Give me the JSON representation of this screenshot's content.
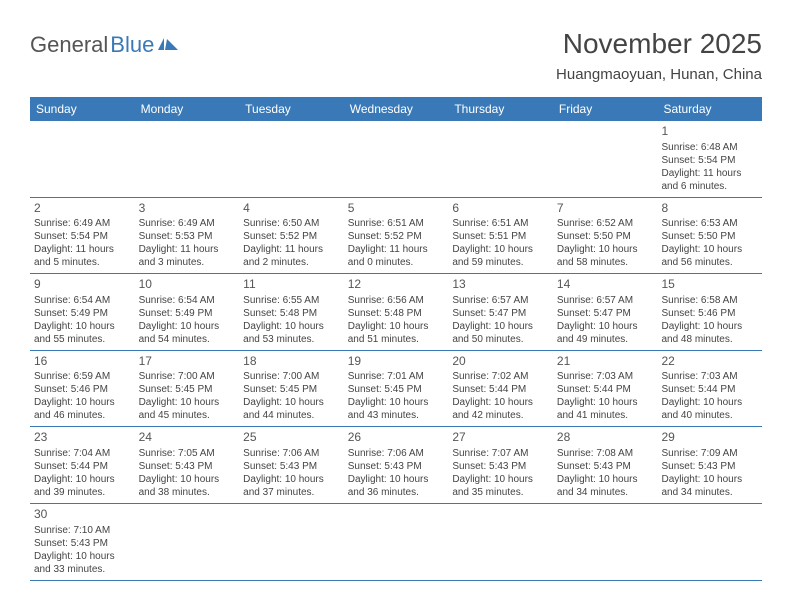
{
  "logo": {
    "textGray": "General",
    "textBlue": "Blue"
  },
  "title": "November 2025",
  "location": "Huangmaoyuan, Hunan, China",
  "colors": {
    "headerBg": "#3a79b7",
    "headerText": "#ffffff",
    "bodyText": "#444444",
    "rowBorder": "#3a79b7",
    "pageBg": "#ffffff"
  },
  "weekdays": [
    "Sunday",
    "Monday",
    "Tuesday",
    "Wednesday",
    "Thursday",
    "Friday",
    "Saturday"
  ],
  "weeks": [
    [
      null,
      null,
      null,
      null,
      null,
      null,
      {
        "num": "1",
        "sunrise": "Sunrise: 6:48 AM",
        "sunset": "Sunset: 5:54 PM",
        "daylight": "Daylight: 11 hours and 6 minutes."
      }
    ],
    [
      {
        "num": "2",
        "sunrise": "Sunrise: 6:49 AM",
        "sunset": "Sunset: 5:54 PM",
        "daylight": "Daylight: 11 hours and 5 minutes."
      },
      {
        "num": "3",
        "sunrise": "Sunrise: 6:49 AM",
        "sunset": "Sunset: 5:53 PM",
        "daylight": "Daylight: 11 hours and 3 minutes."
      },
      {
        "num": "4",
        "sunrise": "Sunrise: 6:50 AM",
        "sunset": "Sunset: 5:52 PM",
        "daylight": "Daylight: 11 hours and 2 minutes."
      },
      {
        "num": "5",
        "sunrise": "Sunrise: 6:51 AM",
        "sunset": "Sunset: 5:52 PM",
        "daylight": "Daylight: 11 hours and 0 minutes."
      },
      {
        "num": "6",
        "sunrise": "Sunrise: 6:51 AM",
        "sunset": "Sunset: 5:51 PM",
        "daylight": "Daylight: 10 hours and 59 minutes."
      },
      {
        "num": "7",
        "sunrise": "Sunrise: 6:52 AM",
        "sunset": "Sunset: 5:50 PM",
        "daylight": "Daylight: 10 hours and 58 minutes."
      },
      {
        "num": "8",
        "sunrise": "Sunrise: 6:53 AM",
        "sunset": "Sunset: 5:50 PM",
        "daylight": "Daylight: 10 hours and 56 minutes."
      }
    ],
    [
      {
        "num": "9",
        "sunrise": "Sunrise: 6:54 AM",
        "sunset": "Sunset: 5:49 PM",
        "daylight": "Daylight: 10 hours and 55 minutes."
      },
      {
        "num": "10",
        "sunrise": "Sunrise: 6:54 AM",
        "sunset": "Sunset: 5:49 PM",
        "daylight": "Daylight: 10 hours and 54 minutes."
      },
      {
        "num": "11",
        "sunrise": "Sunrise: 6:55 AM",
        "sunset": "Sunset: 5:48 PM",
        "daylight": "Daylight: 10 hours and 53 minutes."
      },
      {
        "num": "12",
        "sunrise": "Sunrise: 6:56 AM",
        "sunset": "Sunset: 5:48 PM",
        "daylight": "Daylight: 10 hours and 51 minutes."
      },
      {
        "num": "13",
        "sunrise": "Sunrise: 6:57 AM",
        "sunset": "Sunset: 5:47 PM",
        "daylight": "Daylight: 10 hours and 50 minutes."
      },
      {
        "num": "14",
        "sunrise": "Sunrise: 6:57 AM",
        "sunset": "Sunset: 5:47 PM",
        "daylight": "Daylight: 10 hours and 49 minutes."
      },
      {
        "num": "15",
        "sunrise": "Sunrise: 6:58 AM",
        "sunset": "Sunset: 5:46 PM",
        "daylight": "Daylight: 10 hours and 48 minutes."
      }
    ],
    [
      {
        "num": "16",
        "sunrise": "Sunrise: 6:59 AM",
        "sunset": "Sunset: 5:46 PM",
        "daylight": "Daylight: 10 hours and 46 minutes."
      },
      {
        "num": "17",
        "sunrise": "Sunrise: 7:00 AM",
        "sunset": "Sunset: 5:45 PM",
        "daylight": "Daylight: 10 hours and 45 minutes."
      },
      {
        "num": "18",
        "sunrise": "Sunrise: 7:00 AM",
        "sunset": "Sunset: 5:45 PM",
        "daylight": "Daylight: 10 hours and 44 minutes."
      },
      {
        "num": "19",
        "sunrise": "Sunrise: 7:01 AM",
        "sunset": "Sunset: 5:45 PM",
        "daylight": "Daylight: 10 hours and 43 minutes."
      },
      {
        "num": "20",
        "sunrise": "Sunrise: 7:02 AM",
        "sunset": "Sunset: 5:44 PM",
        "daylight": "Daylight: 10 hours and 42 minutes."
      },
      {
        "num": "21",
        "sunrise": "Sunrise: 7:03 AM",
        "sunset": "Sunset: 5:44 PM",
        "daylight": "Daylight: 10 hours and 41 minutes."
      },
      {
        "num": "22",
        "sunrise": "Sunrise: 7:03 AM",
        "sunset": "Sunset: 5:44 PM",
        "daylight": "Daylight: 10 hours and 40 minutes."
      }
    ],
    [
      {
        "num": "23",
        "sunrise": "Sunrise: 7:04 AM",
        "sunset": "Sunset: 5:44 PM",
        "daylight": "Daylight: 10 hours and 39 minutes."
      },
      {
        "num": "24",
        "sunrise": "Sunrise: 7:05 AM",
        "sunset": "Sunset: 5:43 PM",
        "daylight": "Daylight: 10 hours and 38 minutes."
      },
      {
        "num": "25",
        "sunrise": "Sunrise: 7:06 AM",
        "sunset": "Sunset: 5:43 PM",
        "daylight": "Daylight: 10 hours and 37 minutes."
      },
      {
        "num": "26",
        "sunrise": "Sunrise: 7:06 AM",
        "sunset": "Sunset: 5:43 PM",
        "daylight": "Daylight: 10 hours and 36 minutes."
      },
      {
        "num": "27",
        "sunrise": "Sunrise: 7:07 AM",
        "sunset": "Sunset: 5:43 PM",
        "daylight": "Daylight: 10 hours and 35 minutes."
      },
      {
        "num": "28",
        "sunrise": "Sunrise: 7:08 AM",
        "sunset": "Sunset: 5:43 PM",
        "daylight": "Daylight: 10 hours and 34 minutes."
      },
      {
        "num": "29",
        "sunrise": "Sunrise: 7:09 AM",
        "sunset": "Sunset: 5:43 PM",
        "daylight": "Daylight: 10 hours and 34 minutes."
      }
    ],
    [
      {
        "num": "30",
        "sunrise": "Sunrise: 7:10 AM",
        "sunset": "Sunset: 5:43 PM",
        "daylight": "Daylight: 10 hours and 33 minutes."
      },
      null,
      null,
      null,
      null,
      null,
      null
    ]
  ]
}
